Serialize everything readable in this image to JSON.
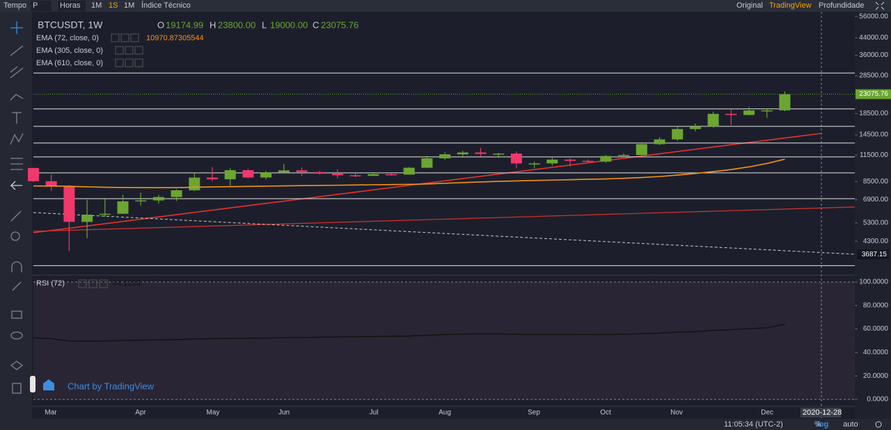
{
  "toolbar": {
    "left": [
      "Tempo",
      "P",
      "Horas",
      "1M",
      "1S",
      "1M",
      "Índice Técnico"
    ],
    "right": [
      "Original",
      "TradingView",
      "Profundidade"
    ]
  },
  "chart_data": {
    "type": "candlestick",
    "symbol": "BTCUSDT, 1W",
    "log": true,
    "ylim": [
      2940,
      58700
    ],
    "yticks": [
      {
        "value": 56000,
        "label": "56000.00"
      },
      {
        "value": 44000,
        "label": "44000.00"
      },
      {
        "value": 36000,
        "label": "36000.00"
      },
      {
        "value": 28500,
        "label": "28500.00"
      },
      {
        "value": 18500,
        "label": "18500.00"
      },
      {
        "value": 14500,
        "label": "14500.00"
      },
      {
        "value": 11500,
        "label": "11500.00"
      },
      {
        "value": 8500,
        "label": "8500.00"
      },
      {
        "value": 6900,
        "label": "6900.00"
      },
      {
        "value": 5300,
        "label": "5300.00"
      },
      {
        "value": 4300,
        "label": "4300.00"
      }
    ],
    "level_ticks": [
      {
        "value": 3687.15,
        "label": "3687.15"
      }
    ],
    "levels": [
      29400,
      19500,
      15970,
      13200,
      11260,
      9380,
      6990,
      3250
    ],
    "up_color": "#6ba631",
    "down_color": "#f0386b",
    "candles": [
      {
        "o": 9920,
        "h": 9960,
        "l": 8450,
        "c": 8530
      },
      {
        "o": 8530,
        "h": 9190,
        "l": 7630,
        "c": 8030
      },
      {
        "o": 8030,
        "h": 8170,
        "l": 3850,
        "c": 5360
      },
      {
        "o": 5360,
        "h": 6900,
        "l": 4440,
        "c": 5820
      },
      {
        "o": 5830,
        "h": 6980,
        "l": 5690,
        "c": 5880
      },
      {
        "o": 5880,
        "h": 7300,
        "l": 5860,
        "c": 6780
      },
      {
        "o": 6780,
        "h": 7470,
        "l": 6460,
        "c": 6850
      },
      {
        "o": 6850,
        "h": 7290,
        "l": 6600,
        "c": 7120
      },
      {
        "o": 7120,
        "h": 7780,
        "l": 6810,
        "c": 7690
      },
      {
        "o": 7690,
        "h": 9460,
        "l": 7610,
        "c": 8890
      },
      {
        "o": 8890,
        "h": 10030,
        "l": 8540,
        "c": 8720
      },
      {
        "o": 8720,
        "h": 9900,
        "l": 8100,
        "c": 9680
      },
      {
        "o": 9680,
        "h": 9840,
        "l": 8810,
        "c": 8900
      },
      {
        "o": 8900,
        "h": 9590,
        "l": 8700,
        "c": 9450
      },
      {
        "o": 9450,
        "h": 10380,
        "l": 9390,
        "c": 9660
      },
      {
        "o": 9660,
        "h": 9990,
        "l": 9080,
        "c": 9470
      },
      {
        "o": 9470,
        "h": 9580,
        "l": 9200,
        "c": 9300
      },
      {
        "o": 9300,
        "h": 9740,
        "l": 8830,
        "c": 9130
      },
      {
        "o": 9130,
        "h": 9300,
        "l": 8940,
        "c": 9070
      },
      {
        "o": 9070,
        "h": 9470,
        "l": 9050,
        "c": 9240
      },
      {
        "o": 9240,
        "h": 9350,
        "l": 9110,
        "c": 9200
      },
      {
        "o": 9200,
        "h": 10020,
        "l": 9180,
        "c": 9950
      },
      {
        "o": 9950,
        "h": 11420,
        "l": 9900,
        "c": 11080
      },
      {
        "o": 11080,
        "h": 11880,
        "l": 10920,
        "c": 11600
      },
      {
        "o": 11600,
        "h": 12080,
        "l": 11150,
        "c": 11850
      },
      {
        "o": 11850,
        "h": 12480,
        "l": 11370,
        "c": 11660
      },
      {
        "o": 11660,
        "h": 11800,
        "l": 11150,
        "c": 11700
      },
      {
        "o": 11700,
        "h": 12000,
        "l": 9900,
        "c": 10450
      },
      {
        "o": 10330,
        "h": 10650,
        "l": 9880,
        "c": 10460
      },
      {
        "o": 10460,
        "h": 11180,
        "l": 10210,
        "c": 10920
      },
      {
        "o": 10920,
        "h": 11090,
        "l": 10140,
        "c": 10770
      },
      {
        "o": 10770,
        "h": 10940,
        "l": 10540,
        "c": 10670
      },
      {
        "o": 10670,
        "h": 11500,
        "l": 10530,
        "c": 11380
      },
      {
        "o": 11380,
        "h": 11730,
        "l": 11190,
        "c": 11510
      },
      {
        "o": 11510,
        "h": 13350,
        "l": 11400,
        "c": 13030
      },
      {
        "o": 13030,
        "h": 14100,
        "l": 12900,
        "c": 13760
      },
      {
        "o": 13760,
        "h": 15970,
        "l": 13530,
        "c": 15490
      },
      {
        "o": 15490,
        "h": 16490,
        "l": 15100,
        "c": 15960
      },
      {
        "o": 15960,
        "h": 18900,
        "l": 15750,
        "c": 18420
      },
      {
        "o": 18420,
        "h": 19500,
        "l": 16200,
        "c": 18190
      },
      {
        "o": 18190,
        "h": 19920,
        "l": 18100,
        "c": 19150
      },
      {
        "o": 19150,
        "h": 19430,
        "l": 17600,
        "c": 19170
      },
      {
        "o": 19174.99,
        "h": 23800,
        "l": 19000,
        "c": 23075.76
      }
    ],
    "ohlc_letters": [
      "O",
      "H",
      "L",
      "C"
    ],
    "last_labels": [
      "19174.99",
      "23800.00",
      "19000.00",
      "23075.76"
    ],
    "indicators": [
      {
        "name": "EMA (72, close, 0)",
        "value_label": "10970.87305544",
        "color": "#f7931a",
        "values": [
          8080,
          8070,
          8050,
          8000,
          7960,
          7940,
          7930,
          7920,
          7930,
          7960,
          7990,
          8020,
          8040,
          8060,
          8090,
          8110,
          8130,
          8150,
          8170,
          8190,
          8210,
          8230,
          8270,
          8330,
          8400,
          8460,
          8520,
          8560,
          8600,
          8640,
          8680,
          8720,
          8760,
          8820,
          8900,
          9000,
          9150,
          9320,
          9520,
          9750,
          10050,
          10450,
          10970.87305544
        ]
      },
      {
        "name": "EMA (305, close, 0)"
      },
      {
        "name": "EMA (610, close, 0)"
      }
    ],
    "months": [
      "Mar",
      "Apr",
      "May",
      "Jun",
      "Jul",
      "Aug",
      "Sep",
      "Oct",
      "Nov",
      "Dec"
    ],
    "crosshair_date": "2020-12-28"
  },
  "rsi": {
    "type": "line",
    "name": "RSI (72)",
    "value_label": "64.1233",
    "color": "#111111",
    "ylim": [
      0,
      100
    ],
    "yticks": [
      {
        "value": 100,
        "label": "100.0000"
      },
      {
        "value": 80,
        "label": "80.0000"
      },
      {
        "value": 60,
        "label": "60.0000"
      },
      {
        "value": 40,
        "label": "40.0000"
      },
      {
        "value": 20,
        "label": "20.0000"
      },
      {
        "value": 0,
        "label": "0.0000"
      }
    ],
    "values": [
      52.5,
      51.8,
      49.8,
      49.6,
      49.8,
      50.2,
      50.5,
      50.8,
      51.0,
      51.4,
      51.8,
      52.0,
      52.1,
      52.3,
      52.6,
      52.8,
      53.0,
      53.2,
      53.4,
      53.6,
      53.8,
      54.0,
      54.6,
      55.2,
      55.6,
      55.8,
      55.8,
      55.4,
      55.3,
      55.4,
      55.3,
      55.2,
      55.3,
      55.5,
      56.0,
      56.5,
      57.2,
      57.8,
      58.8,
      59.5,
      60.3,
      61.0,
      64.1233
    ]
  },
  "watermark": "Chart by TradingView",
  "status": {
    "time": "11:05:34 (UTC-2)",
    "buttons": [
      "%",
      "log",
      "auto"
    ]
  }
}
